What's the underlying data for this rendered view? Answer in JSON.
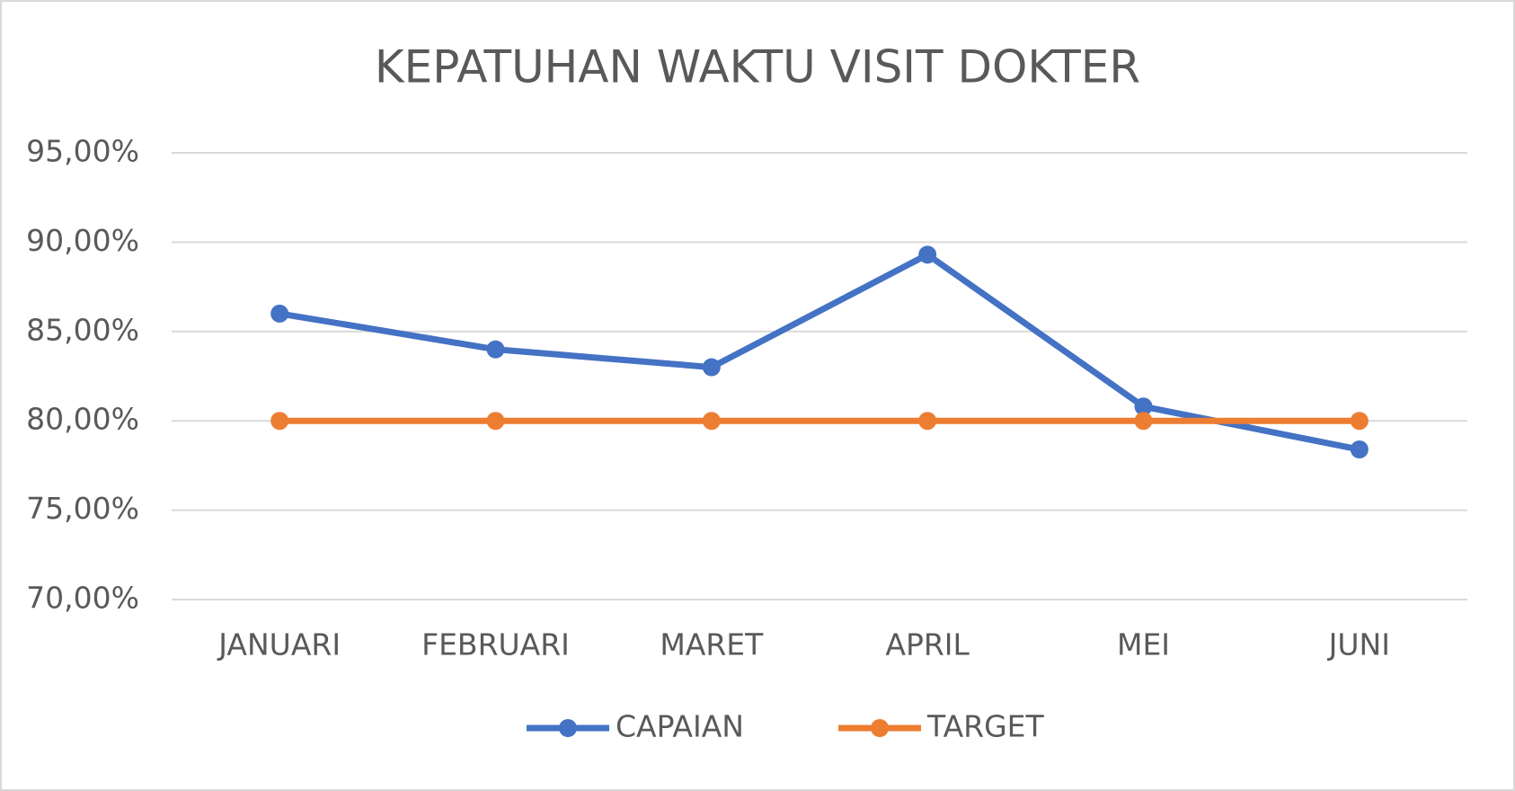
{
  "chart_data": {
    "type": "line",
    "title": "KEPATUHAN WAKTU VISIT DOKTER",
    "categories": [
      "JANUARI",
      "FEBRUARI",
      "MARET",
      "APRIL",
      "MEI",
      "JUNI"
    ],
    "series": [
      {
        "name": "CAPAIAN",
        "color": "#4472c4",
        "values": [
          86.0,
          84.0,
          83.0,
          89.3,
          80.8,
          78.4
        ]
      },
      {
        "name": "TARGET",
        "color": "#ed7d31",
        "values": [
          80,
          80,
          80,
          80,
          80,
          80
        ]
      }
    ],
    "ylim": [
      70,
      95
    ],
    "yticks": [
      {
        "value": 70,
        "label": "70,00%"
      },
      {
        "value": 75,
        "label": "75,00%"
      },
      {
        "value": 80,
        "label": "80,00%"
      },
      {
        "value": 85,
        "label": "85,00%"
      },
      {
        "value": 90,
        "label": "90,00%"
      },
      {
        "value": 95,
        "label": "95,00%"
      }
    ],
    "grid": true,
    "legend": "bottom"
  }
}
